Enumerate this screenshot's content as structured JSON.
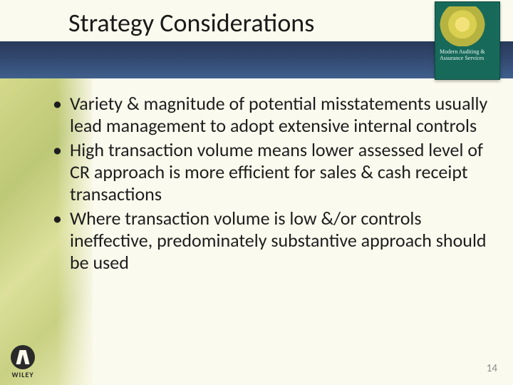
{
  "title": "Strategy Considerations",
  "bullets": [
    "Variety & magnitude of potential misstatements usually lead management to adopt extensive internal controls",
    "High transaction volume means lower assessed level of CR approach is more efficient for sales & cash receipt transactions",
    "Where transaction volume is low &/or controls ineffective, predominately substantive approach should be used"
  ],
  "page_number": "14",
  "publisher": "WILEY",
  "book_cover_title": "Modern Auditing & Assurance Services",
  "colors": {
    "background": "#fbfaee",
    "header_band_top": "#283a5a",
    "header_band_bottom": "#3f5f8d",
    "text": "#1a1a1a",
    "page_num": "#8a8a8a",
    "cover_bg": "#176a5a"
  },
  "fonts": {
    "title_size_pt": 36,
    "body_size_pt": 26,
    "page_num_size_pt": 15
  }
}
